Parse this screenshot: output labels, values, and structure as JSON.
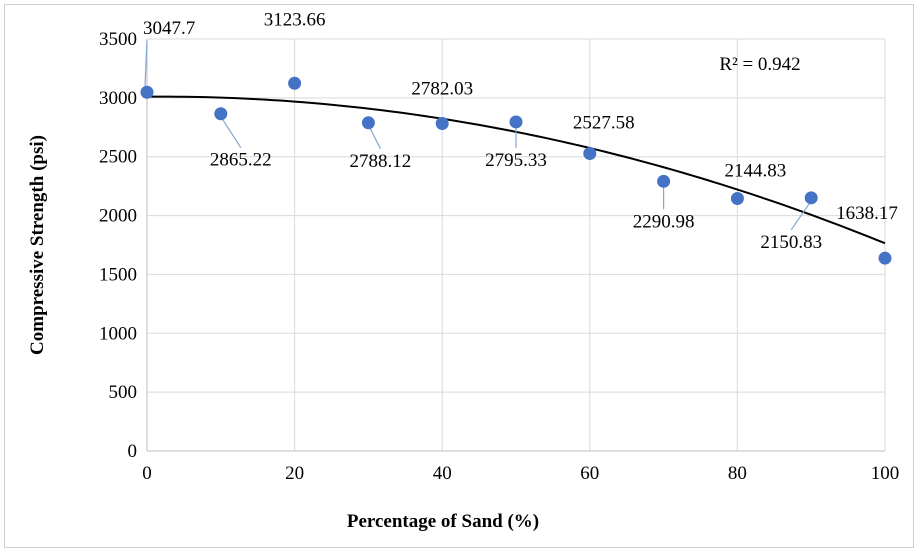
{
  "chart_data": {
    "type": "scatter",
    "title": "",
    "xlabel": "Percentage of Sand (%)",
    "ylabel": "Compressive Strength (psi)",
    "xlim": [
      0,
      100
    ],
    "ylim": [
      0,
      3500
    ],
    "x_ticks": [
      0,
      20,
      40,
      60,
      80,
      100
    ],
    "y_ticks": [
      0,
      500,
      1000,
      1500,
      2000,
      2500,
      3000,
      3500
    ],
    "grid": true,
    "legend": "none",
    "point_color": "#4472C4",
    "x": [
      0,
      10,
      20,
      30,
      40,
      50,
      60,
      70,
      80,
      90,
      100
    ],
    "y": [
      3047.7,
      2865.22,
      3123.66,
      2788.12,
      2782.03,
      2795.33,
      2527.58,
      2290.98,
      2144.83,
      2150.83,
      1638.17
    ],
    "labels": [
      "3047.7",
      "2865.22",
      "3123.66",
      "2788.12",
      "2782.03",
      "2795.33",
      "2527.58",
      "2290.98",
      "2144.83",
      "2150.83",
      "1638.17"
    ],
    "trendline": {
      "type": "polynomial-2",
      "coefficients": [
        3010,
        0.5,
        -0.1295
      ],
      "r_squared_label": "R² = 0.942"
    }
  }
}
